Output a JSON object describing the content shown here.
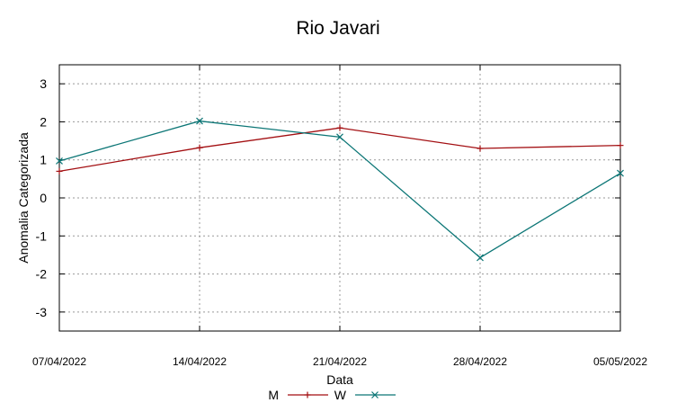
{
  "chart_data": {
    "type": "line",
    "title": "Rio Javari",
    "xlabel": "Data",
    "ylabel": "Anomalia Categorizada",
    "ylim": [
      -3.5,
      3.5
    ],
    "yticks": [
      3,
      2,
      1,
      0,
      -1,
      -2,
      -3
    ],
    "grid": true,
    "legend_position": "bottom-center",
    "categories": [
      "07/04/2022",
      "14/04/2022",
      "21/04/2022",
      "28/04/2022",
      "05/05/2022"
    ],
    "series": [
      {
        "name": "M",
        "color": "#a30f12",
        "marker": "plus",
        "points": [
          {
            "x": 0.0,
            "y": 0.7
          },
          {
            "x": 1.0,
            "y": 1.32
          },
          {
            "x": 2.0,
            "y": 1.84
          },
          {
            "x": 3.0,
            "y": 1.3
          },
          {
            "x": 4.0,
            "y": 1.38
          }
        ]
      },
      {
        "name": "W",
        "color": "#0c7676",
        "marker": "cross",
        "points": [
          {
            "x": 0.0,
            "y": 0.97
          },
          {
            "x": 1.0,
            "y": 2.02
          },
          {
            "x": 2.0,
            "y": 1.6
          },
          {
            "x": 3.0,
            "y": -1.57
          },
          {
            "x": 4.0,
            "y": 0.65
          }
        ]
      }
    ]
  }
}
